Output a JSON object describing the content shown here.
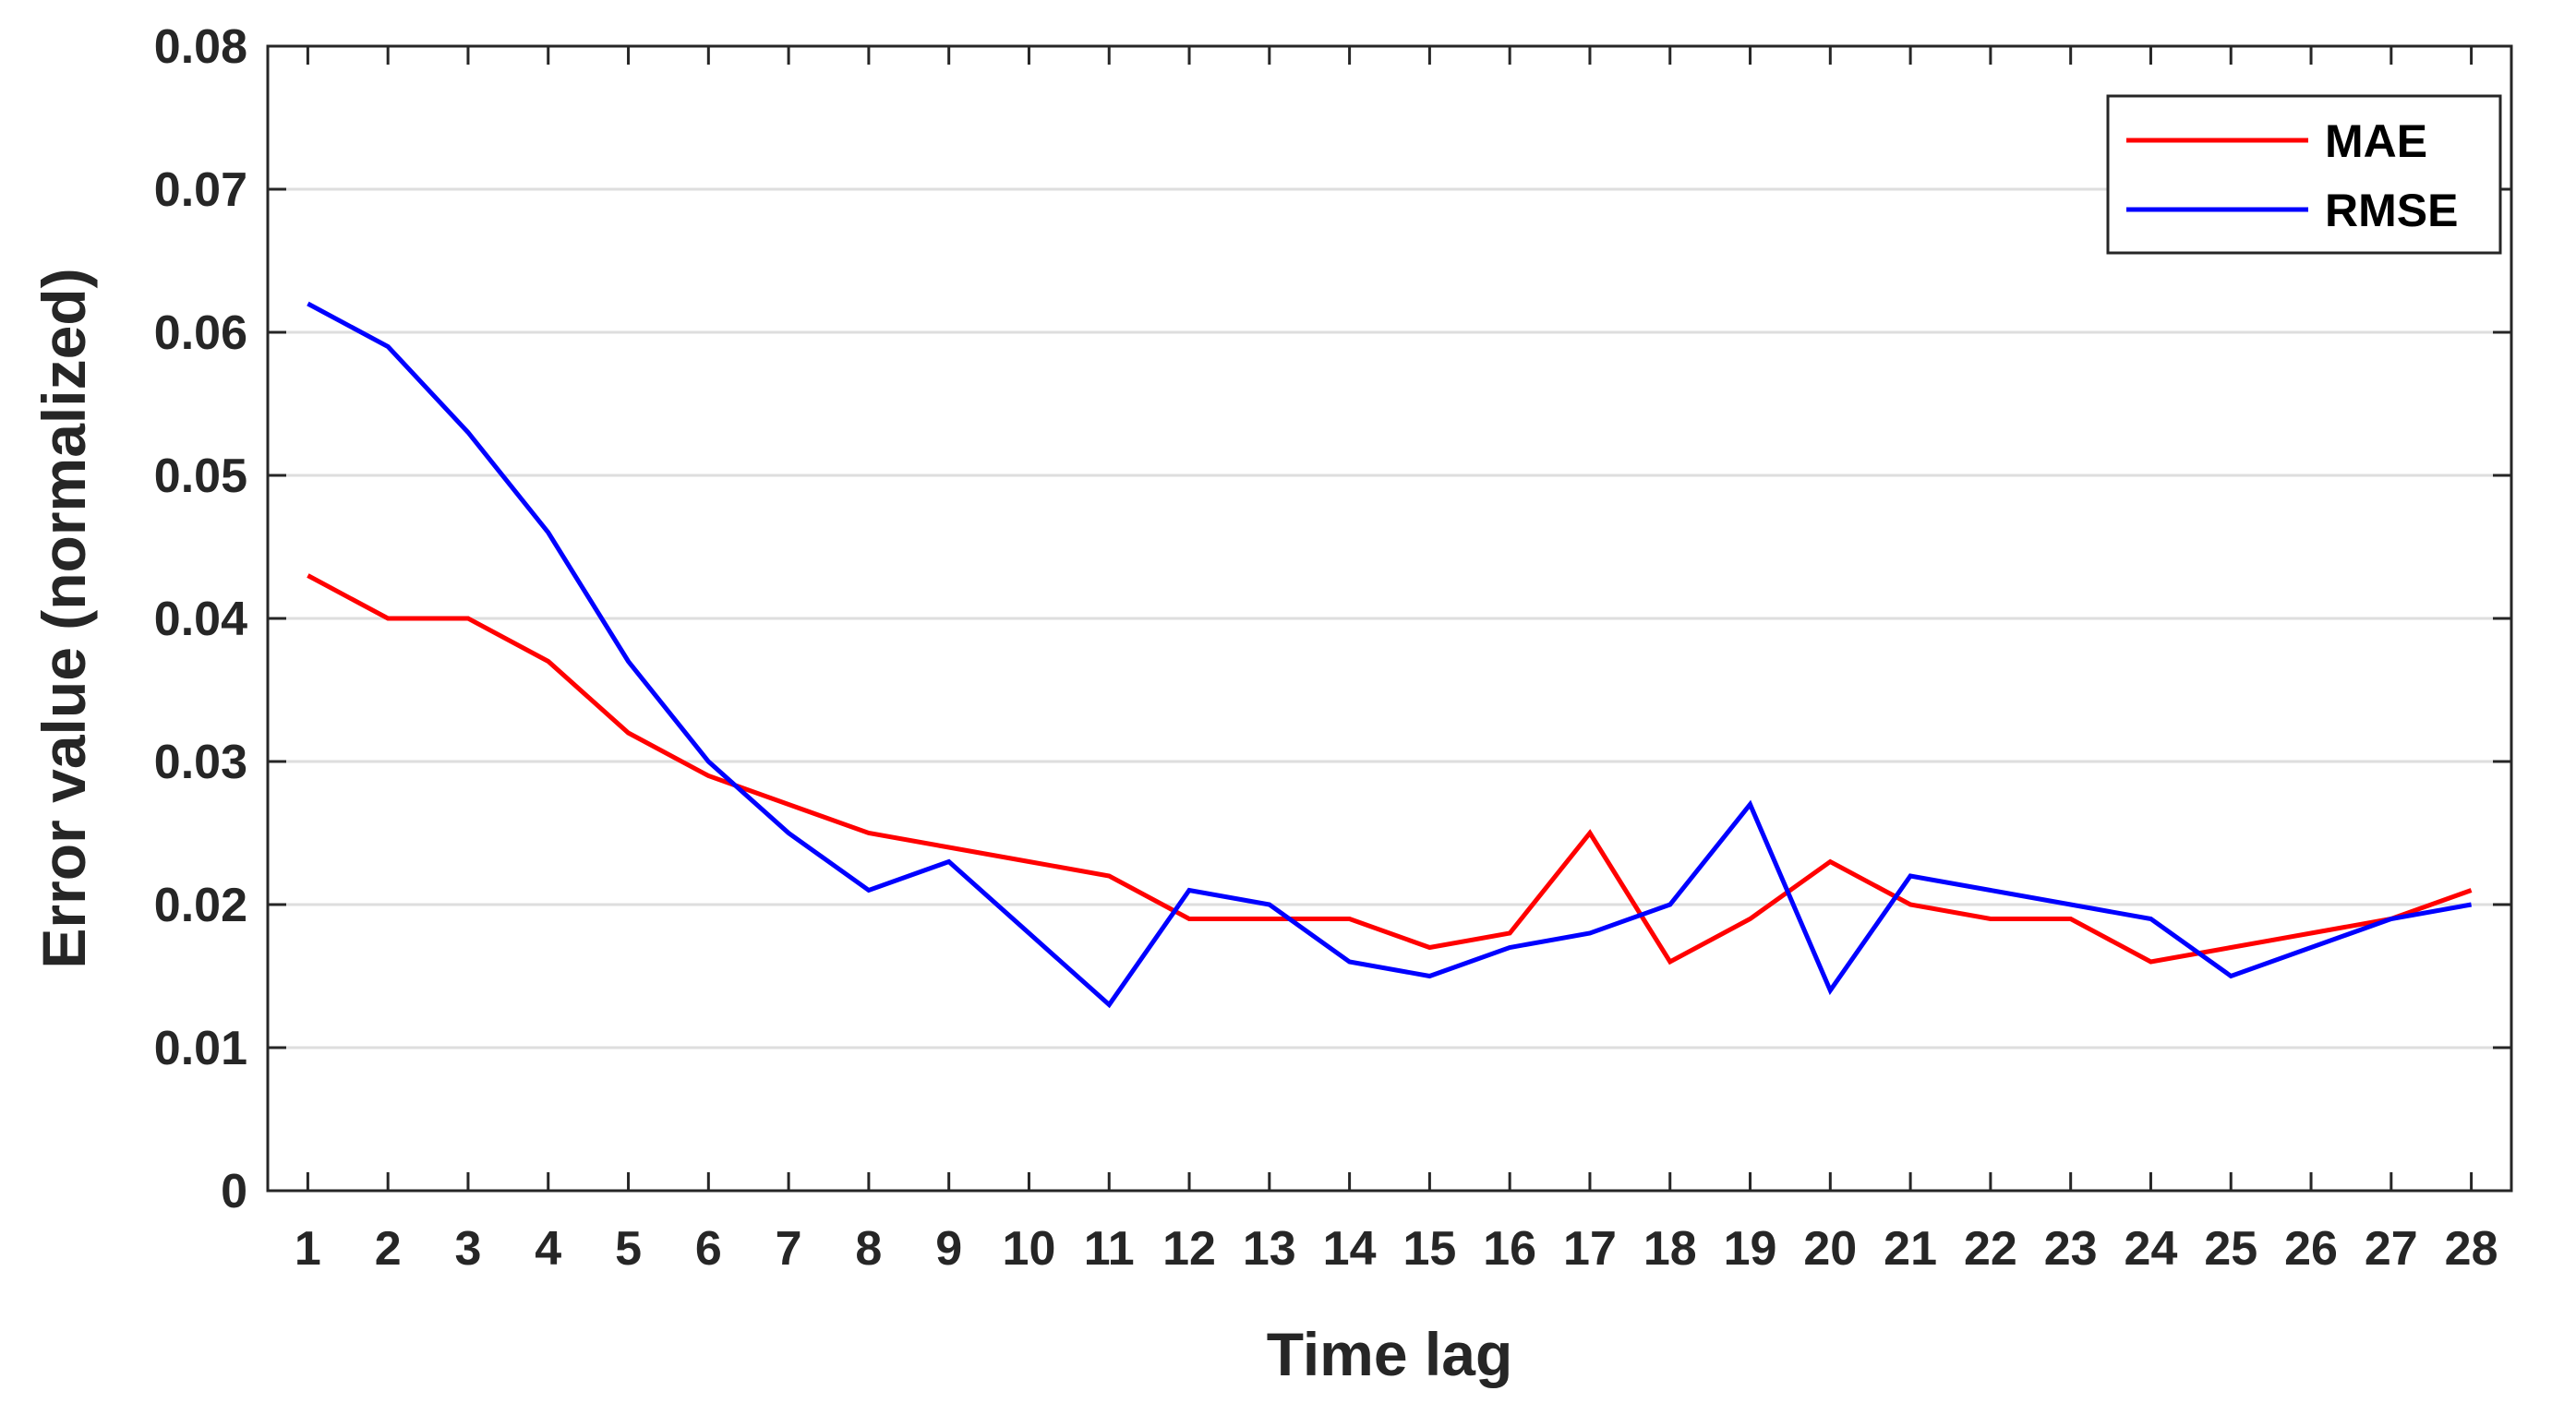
{
  "chart_data": {
    "type": "line",
    "title": "",
    "xlabel": "Time lag",
    "ylabel": "Error value (normalized)",
    "x": [
      1,
      2,
      3,
      4,
      5,
      6,
      7,
      8,
      9,
      10,
      11,
      12,
      13,
      14,
      15,
      16,
      17,
      18,
      19,
      20,
      21,
      22,
      23,
      24,
      25,
      26,
      27,
      28
    ],
    "x_tick_labels": [
      "1",
      "2",
      "3",
      "4",
      "5",
      "6",
      "7",
      "8",
      "9",
      "10",
      "11",
      "12",
      "13",
      "14",
      "15",
      "16",
      "17",
      "18",
      "19",
      "20",
      "21",
      "22",
      "23",
      "24",
      "25",
      "26",
      "27",
      "28"
    ],
    "y_tick_labels": [
      "0",
      "0.01",
      "0.02",
      "0.03",
      "0.04",
      "0.05",
      "0.06",
      "0.07",
      "0.08"
    ],
    "y_ticks": [
      0,
      0.01,
      0.02,
      0.03,
      0.04,
      0.05,
      0.06,
      0.07,
      0.08
    ],
    "xlim": [
      0.5,
      28.5
    ],
    "ylim": [
      0,
      0.08
    ],
    "grid": "horizontal",
    "legend_position": "top-right",
    "series": [
      {
        "name": "MAE",
        "color": "#ff0000",
        "values": [
          0.043,
          0.04,
          0.04,
          0.037,
          0.032,
          0.029,
          0.027,
          0.025,
          0.024,
          0.023,
          0.022,
          0.019,
          0.019,
          0.019,
          0.017,
          0.018,
          0.025,
          0.016,
          0.019,
          0.023,
          0.02,
          0.019,
          0.019,
          0.016,
          0.017,
          0.018,
          0.019,
          0.021
        ]
      },
      {
        "name": "RMSE",
        "color": "#0000ff",
        "values": [
          0.062,
          0.059,
          0.053,
          0.046,
          0.037,
          0.03,
          0.025,
          0.021,
          0.023,
          0.018,
          0.013,
          0.021,
          0.02,
          0.016,
          0.015,
          0.017,
          0.018,
          0.02,
          0.027,
          0.014,
          0.022,
          0.021,
          0.02,
          0.019,
          0.015,
          0.017,
          0.019,
          0.02
        ]
      }
    ]
  }
}
